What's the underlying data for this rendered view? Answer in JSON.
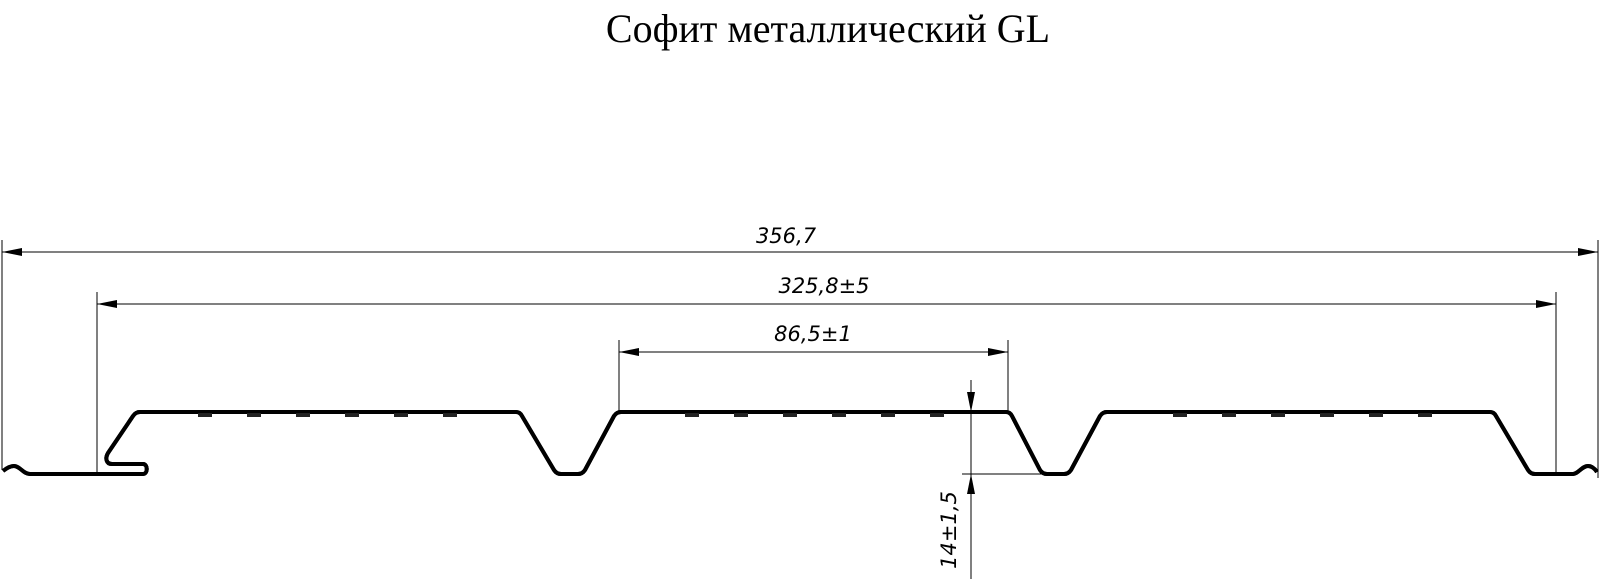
{
  "title": "Софит металлический GL",
  "dimensions": {
    "overall_width": "356,7",
    "working_width": "325,8±5",
    "panel_width": "86,5±1",
    "profile_height": "14±1,5"
  }
}
